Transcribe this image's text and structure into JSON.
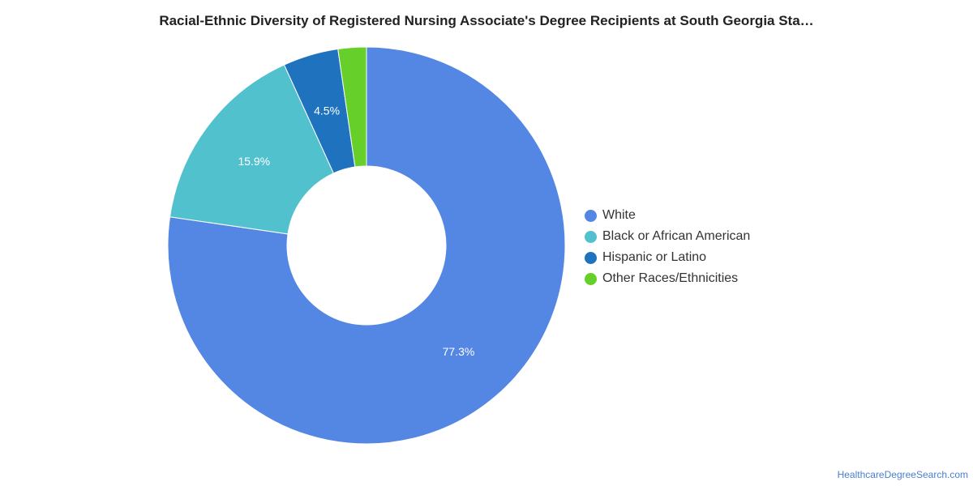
{
  "chart_data": {
    "type": "pie",
    "title": "Racial-Ethnic Diversity of Registered Nursing Associate's Degree Recipients at South Georgia Sta…",
    "slices": [
      {
        "label": "White",
        "value": 77.3,
        "display": "77.3%",
        "color": "#5486e3"
      },
      {
        "label": "Black or African American",
        "value": 15.9,
        "display": "15.9%",
        "color": "#51c1ce"
      },
      {
        "label": "Hispanic or Latino",
        "value": 4.5,
        "display": "4.5%",
        "color": "#1f72bd"
      },
      {
        "label": "Other Races/Ethnicities",
        "value": 2.3,
        "display": "",
        "color": "#67cf29"
      }
    ],
    "donut": true,
    "legend_position": "right"
  },
  "credit": "HealthcareDegreeSearch.com"
}
